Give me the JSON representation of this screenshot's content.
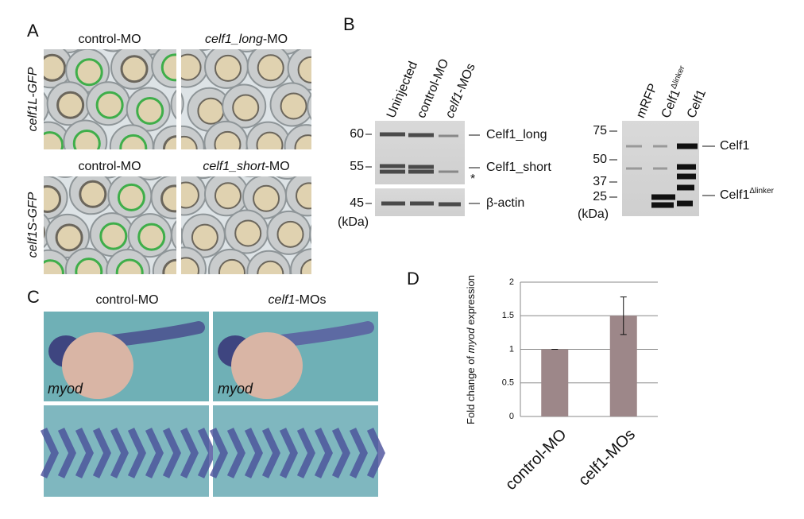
{
  "panels": {
    "A": {
      "label": "A",
      "titles": [
        {
          "text": "control-MO"
        },
        {
          "em": "celf1_long",
          "post": "-MO"
        },
        {
          "text": "control-MO"
        },
        {
          "em": "celf1_short",
          "post": "-MO"
        }
      ],
      "rows": [
        "celf1L-GFP",
        "celf1S-GFP"
      ]
    },
    "B": {
      "label": "B",
      "lanes": [
        "Uninjected",
        "control-MO",
        {
          "em": "celf1",
          "post": "-MOs"
        }
      ],
      "markers": [
        "60",
        "55",
        "45"
      ],
      "unit": "(kDa)",
      "bands": [
        "Celf1_long",
        "Celf1_short",
        "β-actin"
      ],
      "asterisk": "*",
      "lanes2": [
        {
          "base": "mRFP"
        },
        {
          "base": "Celf1",
          "sup": "Δlinker"
        },
        {
          "base": "Celf1"
        }
      ],
      "markers2": [
        "75",
        "50",
        "37",
        "25"
      ],
      "unit2": "(kDa)",
      "bands2": [
        {
          "base": "Celf1"
        },
        {
          "base": "Celf1",
          "sup": "Δlinker"
        }
      ]
    },
    "C": {
      "label": "C",
      "titles": [
        {
          "text": "control-MO"
        },
        {
          "em": "celf1",
          "post": "-MOs"
        }
      ],
      "probe": "myod"
    },
    "D": {
      "label": "D"
    }
  },
  "chart_data": {
    "type": "bar",
    "ylabel": {
      "pre": "Fold change of ",
      "em": "myod",
      "post": " expression"
    },
    "categories": [
      "control-MO",
      "celf1-MOs"
    ],
    "values": [
      1,
      1.5
    ],
    "errors": [
      0,
      0.28
    ],
    "color": "#9d8789",
    "ylim": [
      0,
      2
    ],
    "yticks": [
      0,
      0.5,
      1,
      1.5,
      2
    ],
    "grid": true
  }
}
